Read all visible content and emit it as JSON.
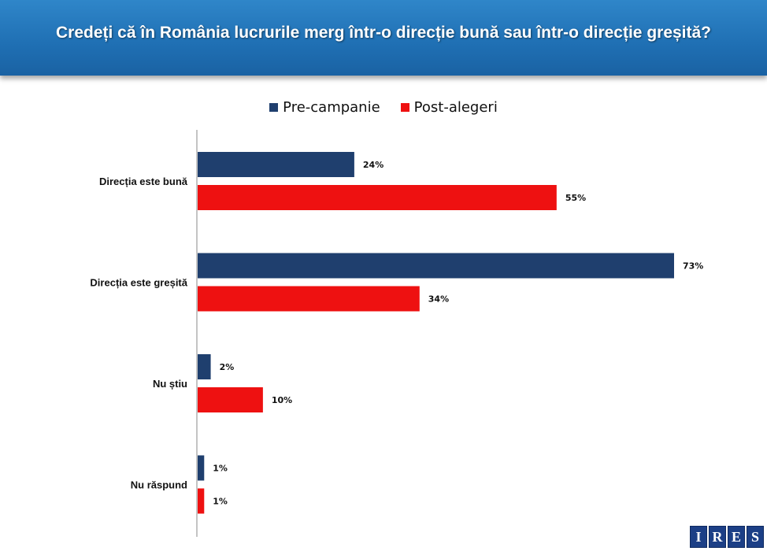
{
  "header": {
    "title": "Credeți că în România lucrurile merg într-o direcție bună sau într-o direcție greșită?"
  },
  "legend": {
    "items": [
      {
        "label": "Pre-campanie",
        "color": "#1f3f6e"
      },
      {
        "label": "Post-alegeri",
        "color": "#ee1111"
      }
    ]
  },
  "logo": {
    "letters": [
      "I",
      "R",
      "E",
      "S"
    ]
  },
  "chart_data": {
    "type": "bar",
    "orientation": "horizontal",
    "title": "Credeți că în România lucrurile merg într-o direcție bună sau într-o direcție greșită?",
    "categories": [
      "Direcția este bună",
      "Direcția este greșită",
      "Nu știu",
      "Nu răspund"
    ],
    "series": [
      {
        "name": "Pre-campanie",
        "color": "#1f3f6e",
        "values": [
          24,
          73,
          2,
          1
        ],
        "labels": [
          "24%",
          "73%",
          "2%",
          "1%"
        ]
      },
      {
        "name": "Post-alegeri",
        "color": "#ee1111",
        "values": [
          55,
          34,
          10,
          1
        ],
        "labels": [
          "55%",
          "34%",
          "10%",
          "1%"
        ]
      }
    ],
    "xlim": [
      0,
      73
    ],
    "legend_position": "top-center",
    "grid": false
  }
}
